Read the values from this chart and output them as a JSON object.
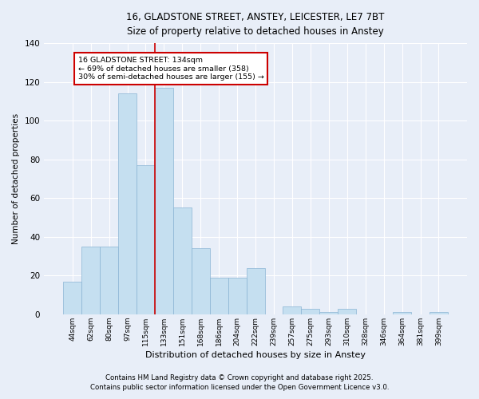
{
  "title1": "16, GLADSTONE STREET, ANSTEY, LEICESTER, LE7 7BT",
  "title2": "Size of property relative to detached houses in Anstey",
  "xlabel": "Distribution of detached houses by size in Anstey",
  "ylabel": "Number of detached properties",
  "categories": [
    "44sqm",
    "62sqm",
    "80sqm",
    "97sqm",
    "115sqm",
    "133sqm",
    "151sqm",
    "168sqm",
    "186sqm",
    "204sqm",
    "222sqm",
    "239sqm",
    "257sqm",
    "275sqm",
    "293sqm",
    "310sqm",
    "328sqm",
    "346sqm",
    "364sqm",
    "381sqm",
    "399sqm"
  ],
  "values": [
    17,
    35,
    35,
    114,
    77,
    117,
    55,
    34,
    19,
    19,
    24,
    0,
    4,
    3,
    1,
    3,
    0,
    0,
    1,
    0,
    1
  ],
  "bar_color": "#c5dff0",
  "bar_edge_color": "#8ab4d4",
  "line_color": "#cc0000",
  "line_index": 5,
  "annotation_title": "16 GLADSTONE STREET: 134sqm",
  "annotation_line1": "← 69% of detached houses are smaller (358)",
  "annotation_line2": "30% of semi-detached houses are larger (155) →",
  "annotation_box_color": "#ffffff",
  "annotation_box_edge": "#cc0000",
  "footer1": "Contains HM Land Registry data © Crown copyright and database right 2025.",
  "footer2": "Contains public sector information licensed under the Open Government Licence v3.0.",
  "bg_color": "#e8eef8",
  "plot_bg_color": "#e8eef8",
  "ylim": [
    0,
    140
  ],
  "yticks": [
    0,
    20,
    40,
    60,
    80,
    100,
    120,
    140
  ]
}
